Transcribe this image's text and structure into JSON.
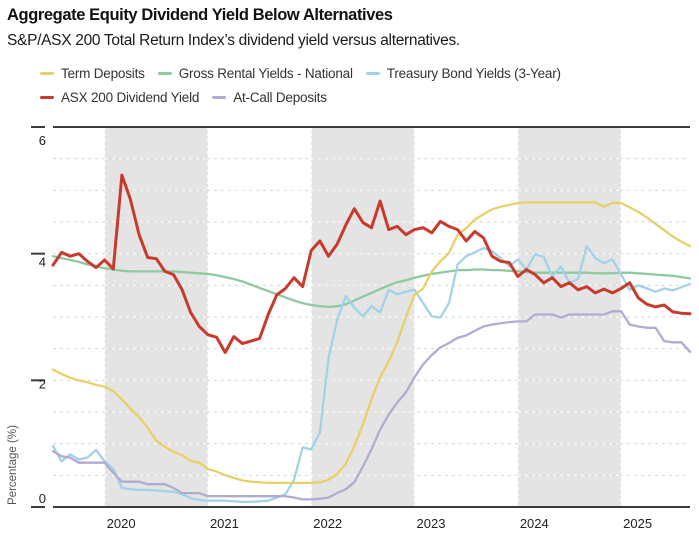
{
  "header": {
    "title": "Aggregate Equity Dividend Yield Below Alternatives",
    "subtitle": "S&P/ASX 200 Total Return Index’s dividend yield versus alternatives."
  },
  "legend": {
    "rows": [
      [
        "Term Deposits",
        "Gross Rental Yields - National",
        "Treasury Bond Yields (3-Year)"
      ],
      [
        "ASX 200 Dividend Yield",
        "At-Call Deposits"
      ]
    ]
  },
  "colors": {
    "term_deposits": "#e8d069",
    "gross_rental": "#8fc9a0",
    "treasury_bond": "#a2d2e7",
    "asx_dividend": "#c73a2c",
    "at_call": "#b2abd1",
    "band": "#e4e4e4",
    "grid": "#d6d6d6",
    "axis": "#3b3b3b",
    "tick_text": "#222222",
    "unit_text": "#555555"
  },
  "chart_data": {
    "type": "line",
    "title": "Aggregate Equity Dividend Yield Below Alternatives",
    "subtitle": "S&P/ASX 200 Total Return Index's dividend yield versus alternatives.",
    "ylabel": "Percentage (%)",
    "ylim": [
      0,
      6
    ],
    "y_ticks": [
      0,
      2,
      4,
      6
    ],
    "gridline_step": 0.5,
    "grid": "horizontal-dashed",
    "legend_position": "top",
    "x_start": "2019-07",
    "x_end": "2025-09",
    "frequency": "monthly",
    "x_year_labels": [
      2020,
      2021,
      2022,
      2023,
      2024,
      2025
    ],
    "shaded_year_bands": [
      2020,
      2022,
      2024
    ],
    "series": [
      {
        "name": "Term Deposits",
        "color": "#e8d069",
        "values": [
          2.17,
          2.1,
          2.04,
          2.0,
          1.97,
          1.93,
          1.9,
          1.83,
          1.7,
          1.55,
          1.42,
          1.25,
          1.05,
          0.95,
          0.87,
          0.82,
          0.73,
          0.7,
          0.6,
          0.56,
          0.5,
          0.46,
          0.42,
          0.4,
          0.39,
          0.38,
          0.38,
          0.38,
          0.38,
          0.38,
          0.38,
          0.39,
          0.43,
          0.52,
          0.68,
          0.96,
          1.3,
          1.7,
          2.05,
          2.3,
          2.6,
          3.0,
          3.35,
          3.45,
          3.72,
          3.88,
          4.01,
          4.3,
          4.4,
          4.54,
          4.62,
          4.7,
          4.74,
          4.77,
          4.8,
          4.81,
          4.81,
          4.81,
          4.81,
          4.81,
          4.81,
          4.81,
          4.81,
          4.81,
          4.74,
          4.8,
          4.8,
          4.73,
          4.66,
          4.57,
          4.47,
          4.37,
          4.27,
          4.19,
          4.12
        ]
      },
      {
        "name": "Gross Rental Yields - National",
        "color": "#8fc9a0",
        "values": [
          3.96,
          3.93,
          3.9,
          3.87,
          3.83,
          3.8,
          3.77,
          3.75,
          3.73,
          3.72,
          3.72,
          3.72,
          3.72,
          3.72,
          3.72,
          3.71,
          3.7,
          3.69,
          3.68,
          3.66,
          3.63,
          3.6,
          3.56,
          3.51,
          3.46,
          3.41,
          3.36,
          3.31,
          3.26,
          3.22,
          3.19,
          3.17,
          3.16,
          3.17,
          3.2,
          3.26,
          3.32,
          3.38,
          3.44,
          3.5,
          3.55,
          3.58,
          3.62,
          3.65,
          3.68,
          3.7,
          3.72,
          3.74,
          3.74,
          3.75,
          3.75,
          3.74,
          3.74,
          3.73,
          3.72,
          3.71,
          3.7,
          3.7,
          3.7,
          3.7,
          3.7,
          3.7,
          3.7,
          3.69,
          3.69,
          3.69,
          3.7,
          3.7,
          3.69,
          3.68,
          3.67,
          3.66,
          3.65,
          3.63,
          3.61
        ]
      },
      {
        "name": "Treasury Bond Yields (3-Year)",
        "color": "#a2d2e7",
        "values": [
          0.96,
          0.72,
          0.83,
          0.75,
          0.78,
          0.9,
          0.72,
          0.6,
          0.3,
          0.28,
          0.27,
          0.27,
          0.26,
          0.25,
          0.24,
          0.2,
          0.14,
          0.11,
          0.1,
          0.1,
          0.1,
          0.09,
          0.08,
          0.08,
          0.09,
          0.1,
          0.15,
          0.2,
          0.43,
          0.94,
          0.91,
          1.18,
          2.35,
          2.95,
          3.33,
          3.15,
          3.01,
          3.17,
          3.07,
          3.43,
          3.36,
          3.4,
          3.43,
          3.22,
          3.01,
          2.99,
          3.22,
          3.83,
          3.96,
          4.02,
          4.09,
          4.04,
          3.93,
          3.8,
          3.91,
          3.75,
          3.99,
          3.95,
          3.64,
          3.8,
          3.54,
          3.6,
          4.12,
          3.93,
          3.85,
          3.91,
          3.67,
          3.43,
          3.5,
          3.45,
          3.4,
          3.45,
          3.42,
          3.47,
          3.52
        ]
      },
      {
        "name": "ASX 200 Dividend Yield",
        "color": "#c73a2c",
        "values": [
          3.82,
          4.02,
          3.96,
          4.0,
          3.88,
          3.78,
          3.9,
          3.76,
          5.24,
          4.85,
          4.3,
          3.94,
          3.92,
          3.72,
          3.67,
          3.43,
          3.07,
          2.85,
          2.72,
          2.68,
          2.44,
          2.69,
          2.58,
          2.62,
          2.66,
          3.04,
          3.35,
          3.45,
          3.62,
          3.48,
          4.05,
          4.2,
          3.96,
          4.15,
          4.45,
          4.71,
          4.49,
          4.41,
          4.83,
          4.38,
          4.43,
          4.3,
          4.38,
          4.41,
          4.33,
          4.51,
          4.43,
          4.38,
          4.2,
          4.35,
          4.25,
          3.96,
          3.88,
          3.86,
          3.64,
          3.75,
          3.67,
          3.54,
          3.62,
          3.48,
          3.54,
          3.43,
          3.48,
          3.38,
          3.44,
          3.38,
          3.45,
          3.54,
          3.3,
          3.2,
          3.16,
          3.19,
          3.08,
          3.06,
          3.05
        ]
      },
      {
        "name": "At-Call Deposits",
        "color": "#b2abd1",
        "values": [
          0.88,
          0.8,
          0.78,
          0.7,
          0.7,
          0.7,
          0.7,
          0.54,
          0.4,
          0.4,
          0.4,
          0.36,
          0.36,
          0.36,
          0.3,
          0.22,
          0.22,
          0.22,
          0.17,
          0.17,
          0.17,
          0.17,
          0.17,
          0.17,
          0.17,
          0.17,
          0.17,
          0.17,
          0.15,
          0.12,
          0.12,
          0.13,
          0.15,
          0.22,
          0.28,
          0.39,
          0.64,
          0.91,
          1.22,
          1.46,
          1.65,
          1.81,
          2.05,
          2.25,
          2.4,
          2.52,
          2.59,
          2.67,
          2.71,
          2.78,
          2.85,
          2.88,
          2.9,
          2.92,
          2.93,
          2.93,
          3.04,
          3.04,
          3.04,
          2.99,
          3.04,
          3.04,
          3.04,
          3.04,
          3.04,
          3.09,
          3.09,
          2.88,
          2.85,
          2.83,
          2.83,
          2.62,
          2.6,
          2.6,
          2.45
        ]
      }
    ]
  }
}
